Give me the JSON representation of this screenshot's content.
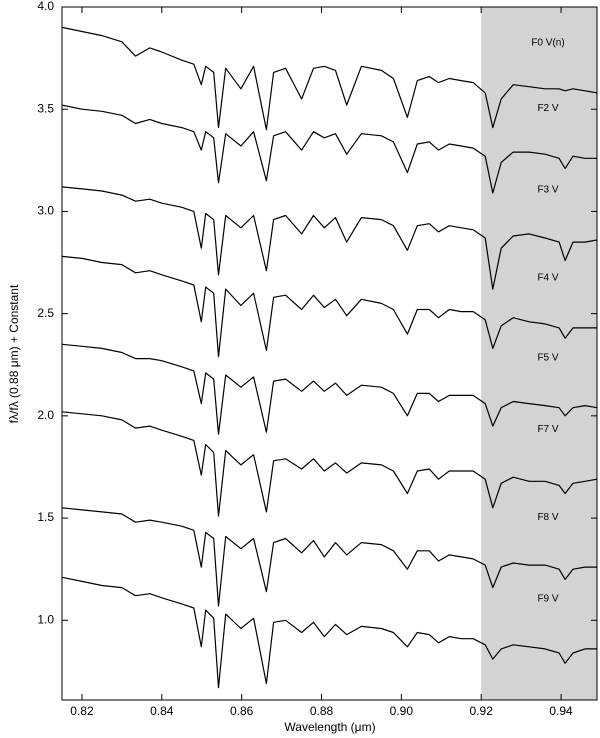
{
  "chart_data": {
    "type": "line",
    "xlabel": "Wavelength (μm)",
    "ylabel": "fλ/fλ (0.88 μm) + Constant",
    "xlim": [
      0.815,
      0.949
    ],
    "ylim": [
      0.61,
      4.0
    ],
    "xticks": [
      0.82,
      0.84,
      0.86,
      0.88,
      {
        "value": 0.9,
        "label": "0.90"
      },
      0.92,
      0.94
    ],
    "yticks": [
      {
        "value": 1,
        "label": "1.0"
      },
      1.5,
      {
        "value": 2,
        "label": "2.0"
      },
      2.5,
      {
        "value": 3,
        "label": "3.0"
      },
      3.5,
      {
        "value": 4,
        "label": "4.0"
      }
    ],
    "shaded_region": [
      0.92,
      0.949
    ],
    "shade_color": "#d3d3d3",
    "x": [
      0.815,
      0.82,
      0.825,
      0.83,
      0.8334,
      0.837,
      0.84,
      0.845,
      0.848,
      0.8499,
      0.851,
      0.853,
      0.8542,
      0.856,
      0.8598,
      0.863,
      0.8662,
      0.868,
      0.871,
      0.875,
      0.878,
      0.8807,
      0.8835,
      0.8863,
      0.89,
      0.895,
      0.898,
      0.9015,
      0.904,
      0.907,
      0.9093,
      0.912,
      0.915,
      0.918,
      0.921,
      0.9229,
      0.925,
      0.928,
      0.932,
      0.936,
      0.9395,
      0.941,
      0.943,
      0.946,
      0.949
    ],
    "series": [
      {
        "name": "F0 V(n)",
        "color": "#000000",
        "values": [
          3.9,
          3.88,
          3.86,
          3.83,
          3.76,
          3.8,
          3.78,
          3.74,
          3.72,
          3.62,
          3.71,
          3.68,
          3.41,
          3.7,
          3.6,
          3.71,
          3.4,
          3.68,
          3.7,
          3.55,
          3.7,
          3.71,
          3.69,
          3.52,
          3.71,
          3.69,
          3.65,
          3.46,
          3.64,
          3.66,
          3.63,
          3.65,
          3.64,
          3.63,
          3.58,
          3.41,
          3.55,
          3.62,
          3.61,
          3.6,
          3.6,
          3.59,
          3.6,
          3.59,
          3.58
        ]
      },
      {
        "name": "F2 V",
        "color": "#000000",
        "values": [
          3.52,
          3.5,
          3.49,
          3.47,
          3.43,
          3.45,
          3.43,
          3.41,
          3.39,
          3.3,
          3.39,
          3.36,
          3.14,
          3.38,
          3.32,
          3.39,
          3.15,
          3.37,
          3.39,
          3.3,
          3.39,
          3.36,
          3.38,
          3.28,
          3.38,
          3.37,
          3.34,
          3.19,
          3.33,
          3.34,
          3.3,
          3.33,
          3.32,
          3.31,
          3.27,
          3.09,
          3.24,
          3.29,
          3.29,
          3.28,
          3.26,
          3.21,
          3.27,
          3.26,
          3.26
        ]
      },
      {
        "name": "F3 V",
        "color": "#000000",
        "values": [
          3.12,
          3.11,
          3.1,
          3.08,
          3.05,
          3.06,
          3.04,
          3.02,
          3.0,
          2.82,
          2.99,
          2.96,
          2.69,
          2.98,
          2.92,
          2.98,
          2.71,
          2.96,
          2.98,
          2.89,
          2.98,
          2.92,
          2.97,
          2.85,
          2.97,
          2.96,
          2.93,
          2.81,
          2.93,
          2.94,
          2.9,
          2.93,
          2.92,
          2.91,
          2.87,
          2.62,
          2.82,
          2.88,
          2.89,
          2.87,
          2.85,
          2.76,
          2.85,
          2.85,
          2.86
        ]
      },
      {
        "name": "F4 V",
        "color": "#000000",
        "values": [
          2.78,
          2.77,
          2.75,
          2.74,
          2.7,
          2.71,
          2.69,
          2.66,
          2.64,
          2.46,
          2.63,
          2.6,
          2.29,
          2.62,
          2.54,
          2.6,
          2.32,
          2.58,
          2.59,
          2.52,
          2.59,
          2.53,
          2.57,
          2.49,
          2.57,
          2.55,
          2.52,
          2.4,
          2.52,
          2.52,
          2.48,
          2.52,
          2.51,
          2.51,
          2.47,
          2.33,
          2.44,
          2.48,
          2.46,
          2.45,
          2.43,
          2.38,
          2.43,
          2.43,
          2.43
        ]
      },
      {
        "name": "F5 V",
        "color": "#000000",
        "values": [
          2.35,
          2.34,
          2.33,
          2.31,
          2.28,
          2.28,
          2.27,
          2.24,
          2.22,
          2.06,
          2.21,
          2.18,
          1.91,
          2.2,
          2.14,
          2.19,
          1.92,
          2.17,
          2.18,
          2.12,
          2.17,
          2.12,
          2.16,
          2.1,
          2.15,
          2.14,
          2.11,
          2.0,
          2.11,
          2.11,
          2.07,
          2.1,
          2.1,
          2.1,
          2.06,
          1.95,
          2.04,
          2.07,
          2.06,
          2.05,
          2.04,
          2.0,
          2.04,
          2.05,
          2.04
        ]
      },
      {
        "name": "F7 V",
        "color": "#000000",
        "values": [
          2.02,
          2.01,
          2.0,
          1.98,
          1.94,
          1.95,
          1.93,
          1.9,
          1.88,
          1.71,
          1.86,
          1.82,
          1.51,
          1.83,
          1.76,
          1.81,
          1.53,
          1.78,
          1.79,
          1.74,
          1.79,
          1.73,
          1.77,
          1.72,
          1.77,
          1.76,
          1.73,
          1.62,
          1.73,
          1.74,
          1.69,
          1.73,
          1.73,
          1.73,
          1.69,
          1.55,
          1.67,
          1.7,
          1.68,
          1.68,
          1.66,
          1.62,
          1.67,
          1.68,
          1.69
        ]
      },
      {
        "name": "F8 V",
        "color": "#000000",
        "values": [
          1.55,
          1.54,
          1.53,
          1.52,
          1.48,
          1.49,
          1.48,
          1.46,
          1.44,
          1.26,
          1.43,
          1.4,
          1.07,
          1.41,
          1.35,
          1.4,
          1.14,
          1.38,
          1.4,
          1.33,
          1.39,
          1.31,
          1.38,
          1.32,
          1.38,
          1.37,
          1.34,
          1.25,
          1.34,
          1.34,
          1.29,
          1.32,
          1.31,
          1.3,
          1.27,
          1.16,
          1.26,
          1.28,
          1.27,
          1.27,
          1.25,
          1.2,
          1.25,
          1.26,
          1.26
        ]
      },
      {
        "name": "F9 V",
        "color": "#000000",
        "values": [
          1.21,
          1.19,
          1.17,
          1.16,
          1.12,
          1.13,
          1.11,
          1.08,
          1.06,
          0.87,
          1.05,
          1.01,
          0.67,
          1.03,
          0.96,
          1.01,
          0.69,
          0.99,
          1.0,
          0.94,
          0.99,
          0.92,
          0.98,
          0.93,
          0.97,
          0.96,
          0.94,
          0.87,
          0.94,
          0.93,
          0.89,
          0.92,
          0.91,
          0.91,
          0.88,
          0.81,
          0.86,
          0.88,
          0.87,
          0.86,
          0.84,
          0.79,
          0.84,
          0.86,
          0.86
        ]
      }
    ]
  }
}
